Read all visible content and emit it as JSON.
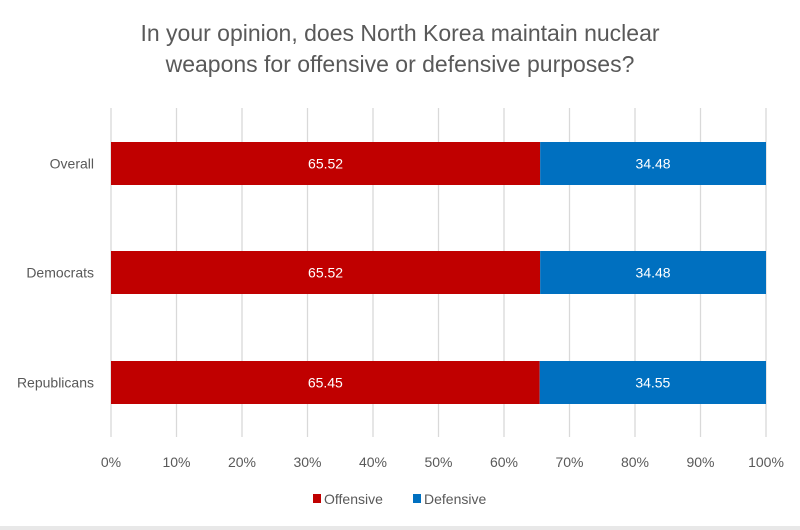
{
  "chart_data": {
    "type": "bar",
    "orientation": "horizontal",
    "stacked": true,
    "title_lines": [
      "In your opinion, does North Korea maintain nuclear",
      "weapons for offensive or defensive purposes?"
    ],
    "categories": [
      "Overall",
      "Democrats",
      "Republicans"
    ],
    "series": [
      {
        "name": "Offensive",
        "color": "#C00000",
        "values": [
          65.52,
          65.52,
          65.45
        ]
      },
      {
        "name": "Defensive",
        "color": "#0070C0",
        "values": [
          34.48,
          34.48,
          34.55
        ]
      }
    ],
    "xticks": [
      "0%",
      "10%",
      "20%",
      "30%",
      "40%",
      "50%",
      "60%",
      "70%",
      "80%",
      "90%",
      "100%"
    ],
    "xlim": [
      0,
      100
    ],
    "grid": true,
    "legend": "bottom",
    "xlabel": "",
    "ylabel": ""
  }
}
